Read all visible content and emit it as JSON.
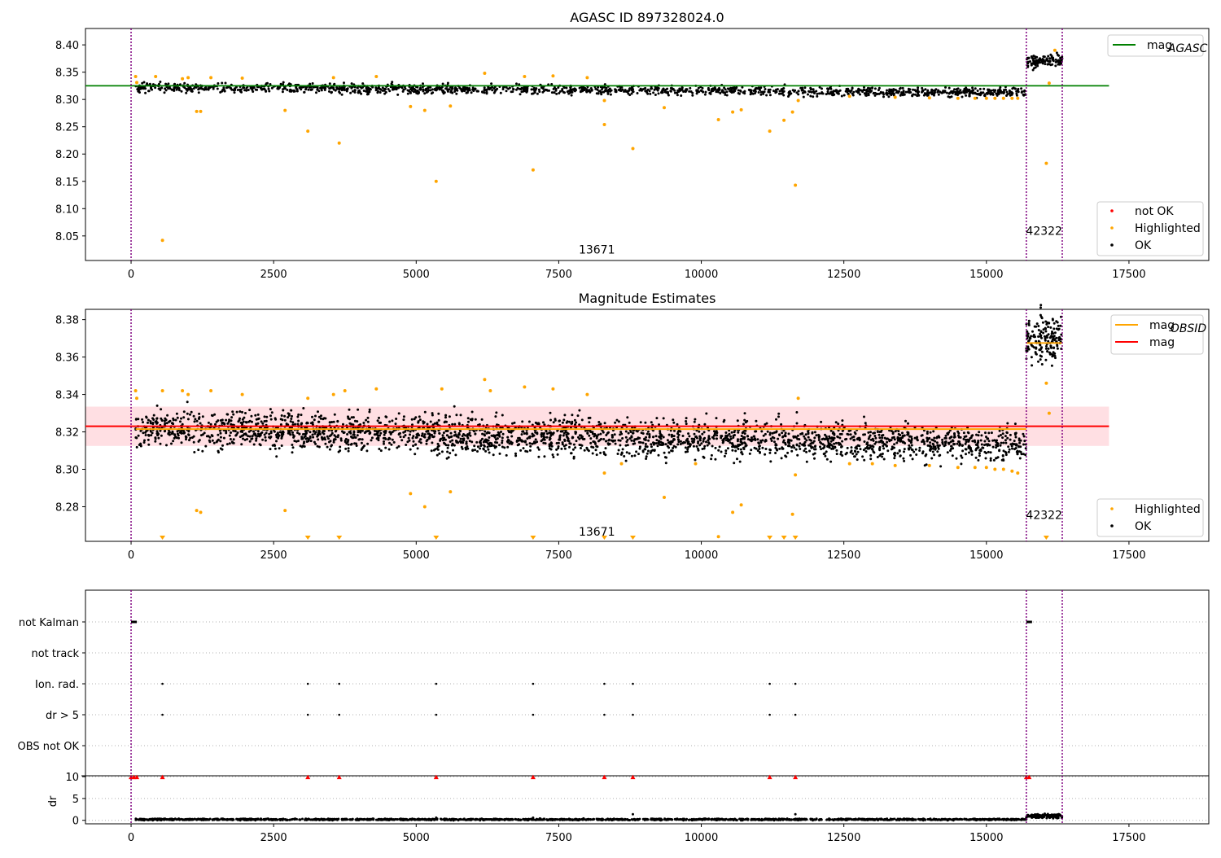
{
  "figure_title": "AGASC ID 897328024.0",
  "chart_data": [
    {
      "type": "scatter",
      "title": "",
      "xlabel": "",
      "ylabel": "",
      "xlim": [
        -800,
        18900
      ],
      "ylim": [
        8.005,
        8.43
      ],
      "xticks": [
        0,
        2500,
        5000,
        7500,
        10000,
        12500,
        15000,
        17500
      ],
      "yticks": [
        8.05,
        8.1,
        8.15,
        8.2,
        8.25,
        8.3,
        8.35,
        8.4
      ],
      "ytick_decimals": 2,
      "vlines": [
        0,
        15700,
        16330
      ],
      "annotations": [
        {
          "text": "13671",
          "x": 7850,
          "y": 8.018
        },
        {
          "text": "42322",
          "x": 16330,
          "y": 8.052
        }
      ],
      "hlines": [
        {
          "name": "mag_AGASC",
          "y": 8.325,
          "x": [
            -800,
            17150
          ],
          "color": "#008000"
        }
      ],
      "ok_segments": [
        {
          "x0": 80,
          "x1": 15700,
          "y0": 8.322,
          "y1": 8.313,
          "spread": 0.006
        },
        {
          "x0": 15700,
          "x1": 16330,
          "y0": 8.368,
          "y1": 8.372,
          "spread": 0.008
        }
      ],
      "highlighted": [
        [
          80,
          8.342
        ],
        [
          100,
          8.331
        ],
        [
          550,
          8.042
        ],
        [
          430,
          8.342
        ],
        [
          900,
          8.338
        ],
        [
          1000,
          8.34
        ],
        [
          1150,
          8.278
        ],
        [
          1220,
          8.278
        ],
        [
          1400,
          8.34
        ],
        [
          1950,
          8.339
        ],
        [
          2700,
          8.28
        ],
        [
          3100,
          8.242
        ],
        [
          3650,
          8.22
        ],
        [
          3550,
          8.34
        ],
        [
          4300,
          8.342
        ],
        [
          4900,
          8.287
        ],
        [
          5150,
          8.28
        ],
        [
          5350,
          8.15
        ],
        [
          5600,
          8.288
        ],
        [
          6200,
          8.348
        ],
        [
          6900,
          8.342
        ],
        [
          7050,
          8.171
        ],
        [
          7400,
          8.343
        ],
        [
          8000,
          8.34
        ],
        [
          8300,
          8.298
        ],
        [
          8300,
          8.254
        ],
        [
          8800,
          8.21
        ],
        [
          9350,
          8.285
        ],
        [
          10300,
          8.263
        ],
        [
          10550,
          8.277
        ],
        [
          10700,
          8.281
        ],
        [
          11200,
          8.242
        ],
        [
          11450,
          8.262
        ],
        [
          11600,
          8.277
        ],
        [
          11650,
          8.143
        ],
        [
          11700,
          8.298
        ],
        [
          12600,
          8.306
        ],
        [
          13400,
          8.304
        ],
        [
          14000,
          8.303
        ],
        [
          14500,
          8.302
        ],
        [
          14800,
          8.302
        ],
        [
          15000,
          8.302
        ],
        [
          15150,
          8.302
        ],
        [
          15300,
          8.302
        ],
        [
          15450,
          8.302
        ],
        [
          15550,
          8.302
        ],
        [
          16050,
          8.183
        ],
        [
          16100,
          8.33
        ],
        [
          16200,
          8.39
        ]
      ],
      "not_ok": [],
      "legend_top": [
        {
          "label": "mag",
          "sub": "AGASC",
          "color": "#008000",
          "kind": "line"
        }
      ],
      "legend_bottom": [
        {
          "label": "not OK",
          "color": "#ff0000",
          "kind": "dot"
        },
        {
          "label": "Highlighted",
          "color": "#ffa500",
          "kind": "dot"
        },
        {
          "label": "OK",
          "color": "#000000",
          "kind": "dot"
        }
      ]
    },
    {
      "type": "scatter",
      "title": "Magnitude Estimates",
      "xlabel": "",
      "ylabel": "",
      "xlim": [
        -800,
        18900
      ],
      "ylim": [
        8.2615,
        8.3855
      ],
      "xticks": [
        0,
        2500,
        5000,
        7500,
        10000,
        12500,
        15000,
        17500
      ],
      "yticks": [
        8.28,
        8.3,
        8.32,
        8.34,
        8.36,
        8.38
      ],
      "ytick_decimals": 2,
      "vlines": [
        0,
        15700,
        16330
      ],
      "annotations": [
        {
          "text": "13671",
          "x": 7850,
          "y": 8.2645
        },
        {
          "text": "42322",
          "x": 16330,
          "y": 8.2735
        }
      ],
      "band": {
        "x": [
          -800,
          17150
        ],
        "y": [
          8.3125,
          8.3335
        ],
        "color": "#ffb0b8"
      },
      "hlines": [
        {
          "name": "mag_OBSID_1",
          "y": 8.3215,
          "x": [
            80,
            15700
          ],
          "color": "#ffa500"
        },
        {
          "name": "mag_OBSID_2",
          "y": 8.3675,
          "x": [
            15700,
            16330
          ],
          "color": "#ffa500"
        },
        {
          "name": "mag",
          "y": 8.323,
          "x": [
            -800,
            17150
          ],
          "color": "#ff0000"
        }
      ],
      "ok_segments": [
        {
          "x0": 80,
          "x1": 15700,
          "y0": 8.322,
          "y1": 8.313,
          "spread": 0.007
        },
        {
          "x0": 15700,
          "x1": 16330,
          "y0": 8.368,
          "y1": 8.372,
          "spread": 0.009
        }
      ],
      "highlighted": [
        [
          80,
          8.342
        ],
        [
          100,
          8.338
        ],
        [
          550,
          8.342
        ],
        [
          900,
          8.342
        ],
        [
          1000,
          8.34
        ],
        [
          1150,
          8.278
        ],
        [
          1220,
          8.277
        ],
        [
          1400,
          8.342
        ],
        [
          1950,
          8.34
        ],
        [
          2700,
          8.278
        ],
        [
          3100,
          8.338
        ],
        [
          3550,
          8.34
        ],
        [
          3750,
          8.342
        ],
        [
          4300,
          8.343
        ],
        [
          4900,
          8.287
        ],
        [
          5150,
          8.28
        ],
        [
          5450,
          8.343
        ],
        [
          5600,
          8.288
        ],
        [
          6200,
          8.348
        ],
        [
          6300,
          8.342
        ],
        [
          6900,
          8.344
        ],
        [
          7400,
          8.343
        ],
        [
          8000,
          8.34
        ],
        [
          8300,
          8.298
        ],
        [
          8600,
          8.303
        ],
        [
          9350,
          8.285
        ],
        [
          9900,
          8.303
        ],
        [
          10300,
          8.264
        ],
        [
          10550,
          8.277
        ],
        [
          10700,
          8.281
        ],
        [
          11600,
          8.276
        ],
        [
          11650,
          8.297
        ],
        [
          11700,
          8.338
        ],
        [
          12600,
          8.303
        ],
        [
          13000,
          8.303
        ],
        [
          13400,
          8.302
        ],
        [
          14000,
          8.302
        ],
        [
          14500,
          8.301
        ],
        [
          14800,
          8.301
        ],
        [
          15000,
          8.301
        ],
        [
          15150,
          8.3
        ],
        [
          15300,
          8.3
        ],
        [
          15450,
          8.299
        ],
        [
          15550,
          8.298
        ],
        [
          16050,
          8.346
        ],
        [
          16100,
          8.33
        ]
      ],
      "below_markers": [
        550,
        3100,
        3650,
        5350,
        7050,
        8300,
        8800,
        11200,
        11450,
        11650,
        16050
      ],
      "legend_top": [
        {
          "label": "mag",
          "sub": "OBSID",
          "color": "#ffa500",
          "kind": "line"
        },
        {
          "label": "mag",
          "color": "#ff0000",
          "kind": "line"
        }
      ],
      "legend_bottom": [
        {
          "label": "Highlighted",
          "color": "#ffa500",
          "kind": "dot"
        },
        {
          "label": "OK",
          "color": "#000000",
          "kind": "dot"
        }
      ]
    },
    {
      "type": "scatter",
      "title": "",
      "xlabel": "",
      "ylabel": "",
      "xlim": [
        -800,
        18900
      ],
      "categories": [
        "not Kalman",
        "not track",
        "Ion. rad.",
        "dr > 5",
        "OBS not OK"
      ],
      "flags": {
        "not Kalman": [
          [
            0,
            100
          ],
          [
            15700,
            15800
          ]
        ],
        "not track": [],
        "Ion. rad.": [
          550,
          3100,
          3650,
          5350,
          7050,
          8300,
          8800,
          11200,
          11650
        ],
        "dr > 5": [
          550,
          3100,
          3650,
          5350,
          7050,
          8300,
          8800,
          11200,
          11650
        ],
        "OBS not OK": []
      },
      "vlines": [
        0,
        15700,
        16330
      ]
    },
    {
      "type": "scatter",
      "title": "",
      "xlabel": "",
      "ylabel": "dr",
      "xlim": [
        -800,
        18900
      ],
      "ylim": [
        -0.8,
        10.2
      ],
      "xticks": [
        0,
        2500,
        5000,
        7500,
        10000,
        12500,
        15000,
        17500
      ],
      "yticks": [
        0,
        5,
        10
      ],
      "ytick_decimals": 0,
      "vlines": [
        0,
        15700,
        16330
      ],
      "ok_segments": [
        {
          "x0": 80,
          "x1": 15700,
          "y0": 0.2,
          "y1": 0.2,
          "spread": 0.12
        },
        {
          "x0": 15700,
          "x1": 16330,
          "y0": 1.0,
          "y1": 1.0,
          "spread": 0.35
        }
      ],
      "capped_markers": [
        0,
        50,
        100,
        550,
        3100,
        3650,
        5350,
        7050,
        8300,
        8800,
        11200,
        11650,
        15700,
        15750
      ],
      "spikes": [
        [
          8800,
          1.4
        ],
        [
          11650,
          1.4
        ],
        [
          5350,
          0.6
        ],
        [
          7050,
          0.6
        ]
      ]
    }
  ],
  "colors": {
    "ok": "#000000",
    "highlighted": "#ffa500",
    "not_ok": "#ff0000",
    "vline": "#800080",
    "grid": "#b0b0b0"
  }
}
